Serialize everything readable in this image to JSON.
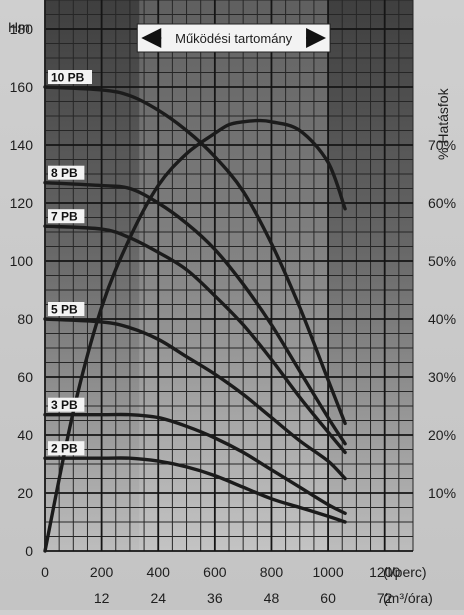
{
  "chart_data": {
    "type": "line",
    "title": "",
    "xlabel": "",
    "ylabel": "",
    "x_unit": "(l/perc)",
    "x2_unit": "(m³/óra)",
    "y_unit": "Hm",
    "y2_label": "% Hatásfok",
    "xlim": [
      0,
      1300
    ],
    "ylim": [
      0,
      190
    ],
    "x_ticks": [
      "0",
      "200",
      "400",
      "600",
      "800",
      "1000",
      "1200"
    ],
    "x2_ticks": [
      "12",
      "24",
      "36",
      "48",
      "60",
      "72"
    ],
    "y_ticks": [
      "0",
      "20",
      "40",
      "60",
      "80",
      "100",
      "120",
      "140",
      "160",
      "180"
    ],
    "y2_ticks": [
      "10%",
      "20%",
      "30%",
      "40%",
      "50%",
      "60%",
      "70%"
    ],
    "operating_range": {
      "label": "Működési tartomány",
      "x_start": 333,
      "x_end": 1000
    },
    "grid": true,
    "series": [
      {
        "name": "10 PB",
        "points": [
          [
            0,
            160
          ],
          [
            200,
            159
          ],
          [
            300,
            157
          ],
          [
            400,
            152
          ],
          [
            500,
            145
          ],
          [
            600,
            136
          ],
          [
            700,
            124
          ],
          [
            800,
            106
          ],
          [
            900,
            84
          ],
          [
            1000,
            59
          ],
          [
            1060,
            44
          ]
        ]
      },
      {
        "name": "8 PB",
        "points": [
          [
            0,
            127
          ],
          [
            200,
            126
          ],
          [
            300,
            125
          ],
          [
            400,
            120
          ],
          [
            500,
            113
          ],
          [
            600,
            104
          ],
          [
            700,
            92
          ],
          [
            800,
            78
          ],
          [
            900,
            62
          ],
          [
            1000,
            46
          ],
          [
            1060,
            37
          ]
        ]
      },
      {
        "name": "7 PB",
        "points": [
          [
            0,
            112
          ],
          [
            200,
            111
          ],
          [
            300,
            108
          ],
          [
            400,
            103
          ],
          [
            500,
            97
          ],
          [
            600,
            88
          ],
          [
            700,
            78
          ],
          [
            800,
            66
          ],
          [
            900,
            53
          ],
          [
            1000,
            41
          ],
          [
            1060,
            34
          ]
        ]
      },
      {
        "name": "5 PB",
        "points": [
          [
            0,
            80
          ],
          [
            200,
            79
          ],
          [
            300,
            77
          ],
          [
            400,
            73
          ],
          [
            500,
            67
          ],
          [
            600,
            61
          ],
          [
            700,
            54
          ],
          [
            800,
            46
          ],
          [
            900,
            38
          ],
          [
            1000,
            31
          ],
          [
            1060,
            25
          ]
        ]
      },
      {
        "name": "3 PB",
        "points": [
          [
            0,
            47
          ],
          [
            200,
            47
          ],
          [
            300,
            47
          ],
          [
            400,
            46
          ],
          [
            500,
            43
          ],
          [
            600,
            39
          ],
          [
            700,
            34
          ],
          [
            800,
            28
          ],
          [
            900,
            22
          ],
          [
            1000,
            16
          ],
          [
            1060,
            13
          ]
        ]
      },
      {
        "name": "2 PB",
        "points": [
          [
            0,
            32
          ],
          [
            200,
            32
          ],
          [
            300,
            32
          ],
          [
            400,
            31
          ],
          [
            500,
            29
          ],
          [
            600,
            26
          ],
          [
            700,
            22
          ],
          [
            800,
            18
          ],
          [
            900,
            15
          ],
          [
            1000,
            12
          ],
          [
            1060,
            10
          ]
        ]
      }
    ],
    "efficiency": {
      "name": "Hatásfok",
      "points": [
        [
          0,
          0
        ],
        [
          100,
          24
        ],
        [
          200,
          42
        ],
        [
          300,
          54
        ],
        [
          400,
          63
        ],
        [
          500,
          68.5
        ],
        [
          600,
          72
        ],
        [
          650,
          73.5
        ],
        [
          700,
          74
        ],
        [
          750,
          74.2
        ],
        [
          800,
          74
        ],
        [
          900,
          72.5
        ],
        [
          1000,
          67
        ],
        [
          1060,
          59
        ]
      ]
    }
  }
}
